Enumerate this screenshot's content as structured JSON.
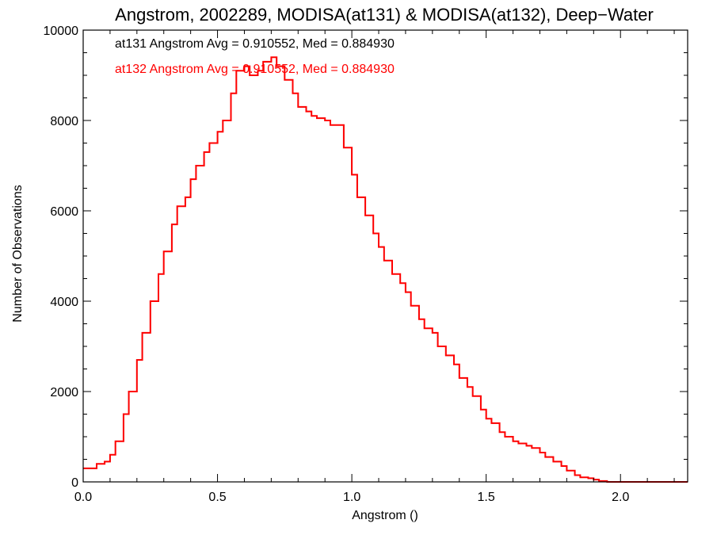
{
  "chart_data": {
    "type": "line",
    "step": true,
    "title": "Angstrom, 2002289, MODISA(at131) & MODISA(at132), Deep−Water",
    "xlabel": "Angstrom ()",
    "ylabel": "Number of Observations",
    "xlim": [
      0.0,
      2.25
    ],
    "ylim": [
      0,
      10000
    ],
    "x_ticks": [
      0.0,
      0.5,
      1.0,
      1.5,
      2.0
    ],
    "x_tick_labels": [
      "0.0",
      "0.5",
      "1.0",
      "1.5",
      "2.0"
    ],
    "y_ticks": [
      0,
      2000,
      4000,
      6000,
      8000,
      10000
    ],
    "y_tick_labels": [
      "0",
      "2000",
      "4000",
      "6000",
      "8000",
      "10000"
    ],
    "annotations": [
      {
        "text": "at131 Angstrom Avg = 0.910552, Med = 0.884930",
        "color": "#000000"
      },
      {
        "text": "at132 Angstrom Avg = 0.910552, Med = 0.884930",
        "color": "#ff0000"
      }
    ],
    "series": [
      {
        "color": "#000000",
        "x": [
          0.0,
          0.05,
          0.08,
          0.1,
          0.12,
          0.15,
          0.17,
          0.2,
          0.22,
          0.25,
          0.28,
          0.3,
          0.33,
          0.35,
          0.38,
          0.4,
          0.42,
          0.45,
          0.47,
          0.5,
          0.52,
          0.55,
          0.57,
          0.6,
          0.62,
          0.65,
          0.67,
          0.7,
          0.72,
          0.75,
          0.78,
          0.8,
          0.83,
          0.85,
          0.87,
          0.9,
          0.92,
          0.95,
          0.97,
          1.0,
          1.02,
          1.05,
          1.08,
          1.1,
          1.12,
          1.15,
          1.18,
          1.2,
          1.22,
          1.25,
          1.27,
          1.3,
          1.32,
          1.35,
          1.38,
          1.4,
          1.43,
          1.45,
          1.48,
          1.5,
          1.52,
          1.55,
          1.57,
          1.6,
          1.62,
          1.65,
          1.67,
          1.7,
          1.72,
          1.75,
          1.78,
          1.8,
          1.83,
          1.85,
          1.88,
          1.9,
          1.92,
          1.95,
          1.97,
          2.0,
          2.02,
          2.05,
          2.08,
          2.1,
          2.12,
          2.15,
          2.2,
          2.25
        ],
        "y": [
          300,
          400,
          450,
          600,
          900,
          1500,
          2000,
          2700,
          3300,
          4000,
          4600,
          5100,
          5700,
          6100,
          6300,
          6700,
          7000,
          7300,
          7500,
          7750,
          8000,
          8600,
          9100,
          9200,
          9000,
          9100,
          9300,
          9400,
          9200,
          8900,
          8600,
          8300,
          8200,
          8100,
          8050,
          8000,
          7900,
          7900,
          7400,
          6800,
          6300,
          5900,
          5500,
          5200,
          4900,
          4600,
          4400,
          4200,
          3900,
          3600,
          3400,
          3300,
          3000,
          2800,
          2600,
          2300,
          2100,
          1900,
          1600,
          1400,
          1300,
          1100,
          1000,
          900,
          850,
          800,
          750,
          650,
          550,
          450,
          350,
          250,
          150,
          100,
          80,
          50,
          20,
          0,
          0,
          0,
          0,
          0,
          0,
          0,
          0,
          0,
          0,
          0
        ]
      },
      {
        "color": "#ff0000",
        "x": [
          0.0,
          0.05,
          0.08,
          0.1,
          0.12,
          0.15,
          0.17,
          0.2,
          0.22,
          0.25,
          0.28,
          0.3,
          0.33,
          0.35,
          0.38,
          0.4,
          0.42,
          0.45,
          0.47,
          0.5,
          0.52,
          0.55,
          0.57,
          0.6,
          0.62,
          0.65,
          0.67,
          0.7,
          0.72,
          0.75,
          0.78,
          0.8,
          0.83,
          0.85,
          0.87,
          0.9,
          0.92,
          0.95,
          0.97,
          1.0,
          1.02,
          1.05,
          1.08,
          1.1,
          1.12,
          1.15,
          1.18,
          1.2,
          1.22,
          1.25,
          1.27,
          1.3,
          1.32,
          1.35,
          1.38,
          1.4,
          1.43,
          1.45,
          1.48,
          1.5,
          1.52,
          1.55,
          1.57,
          1.6,
          1.62,
          1.65,
          1.67,
          1.7,
          1.72,
          1.75,
          1.78,
          1.8,
          1.83,
          1.85,
          1.88,
          1.9,
          1.92,
          1.95,
          1.97,
          2.0,
          2.02,
          2.05,
          2.08,
          2.1,
          2.12,
          2.15,
          2.2,
          2.25
        ],
        "y": [
          300,
          400,
          450,
          600,
          900,
          1500,
          2000,
          2700,
          3300,
          4000,
          4600,
          5100,
          5700,
          6100,
          6300,
          6700,
          7000,
          7300,
          7500,
          7750,
          8000,
          8600,
          9100,
          9200,
          9000,
          9100,
          9300,
          9400,
          9200,
          8900,
          8600,
          8300,
          8200,
          8100,
          8050,
          8000,
          7900,
          7900,
          7400,
          6800,
          6300,
          5900,
          5500,
          5200,
          4900,
          4600,
          4400,
          4200,
          3900,
          3600,
          3400,
          3300,
          3000,
          2800,
          2600,
          2300,
          2100,
          1900,
          1600,
          1400,
          1300,
          1100,
          1000,
          900,
          850,
          800,
          750,
          650,
          550,
          450,
          350,
          250,
          150,
          100,
          80,
          50,
          20,
          0,
          0,
          0,
          0,
          0,
          0,
          0,
          0,
          0,
          0,
          0
        ]
      }
    ]
  }
}
